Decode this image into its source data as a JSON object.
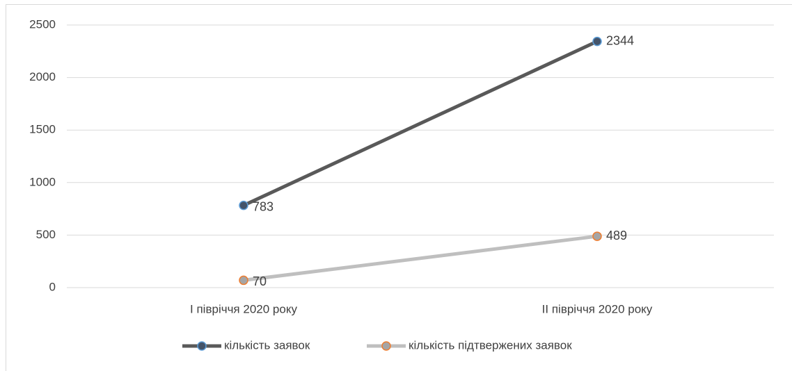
{
  "chart_data": {
    "type": "line",
    "categories": [
      "I півріччя 2020 року",
      "II півріччя 2020 року"
    ],
    "series": [
      {
        "name": "кількість заявок",
        "color": "#595959",
        "marker_fill": "#44546a",
        "marker_edge": "#5b9bd5",
        "values": [
          783,
          2344
        ]
      },
      {
        "name": "кількість підтвержених заявок",
        "color": "#bfbfbf",
        "marker_fill": "#a5a5a5",
        "marker_edge": "#ed7d31",
        "values": [
          70,
          489
        ]
      }
    ],
    "ylim": [
      0,
      2500
    ],
    "yticks": [
      0,
      500,
      1000,
      1500,
      2000,
      2500
    ],
    "grid": true,
    "legend": "bottom"
  }
}
